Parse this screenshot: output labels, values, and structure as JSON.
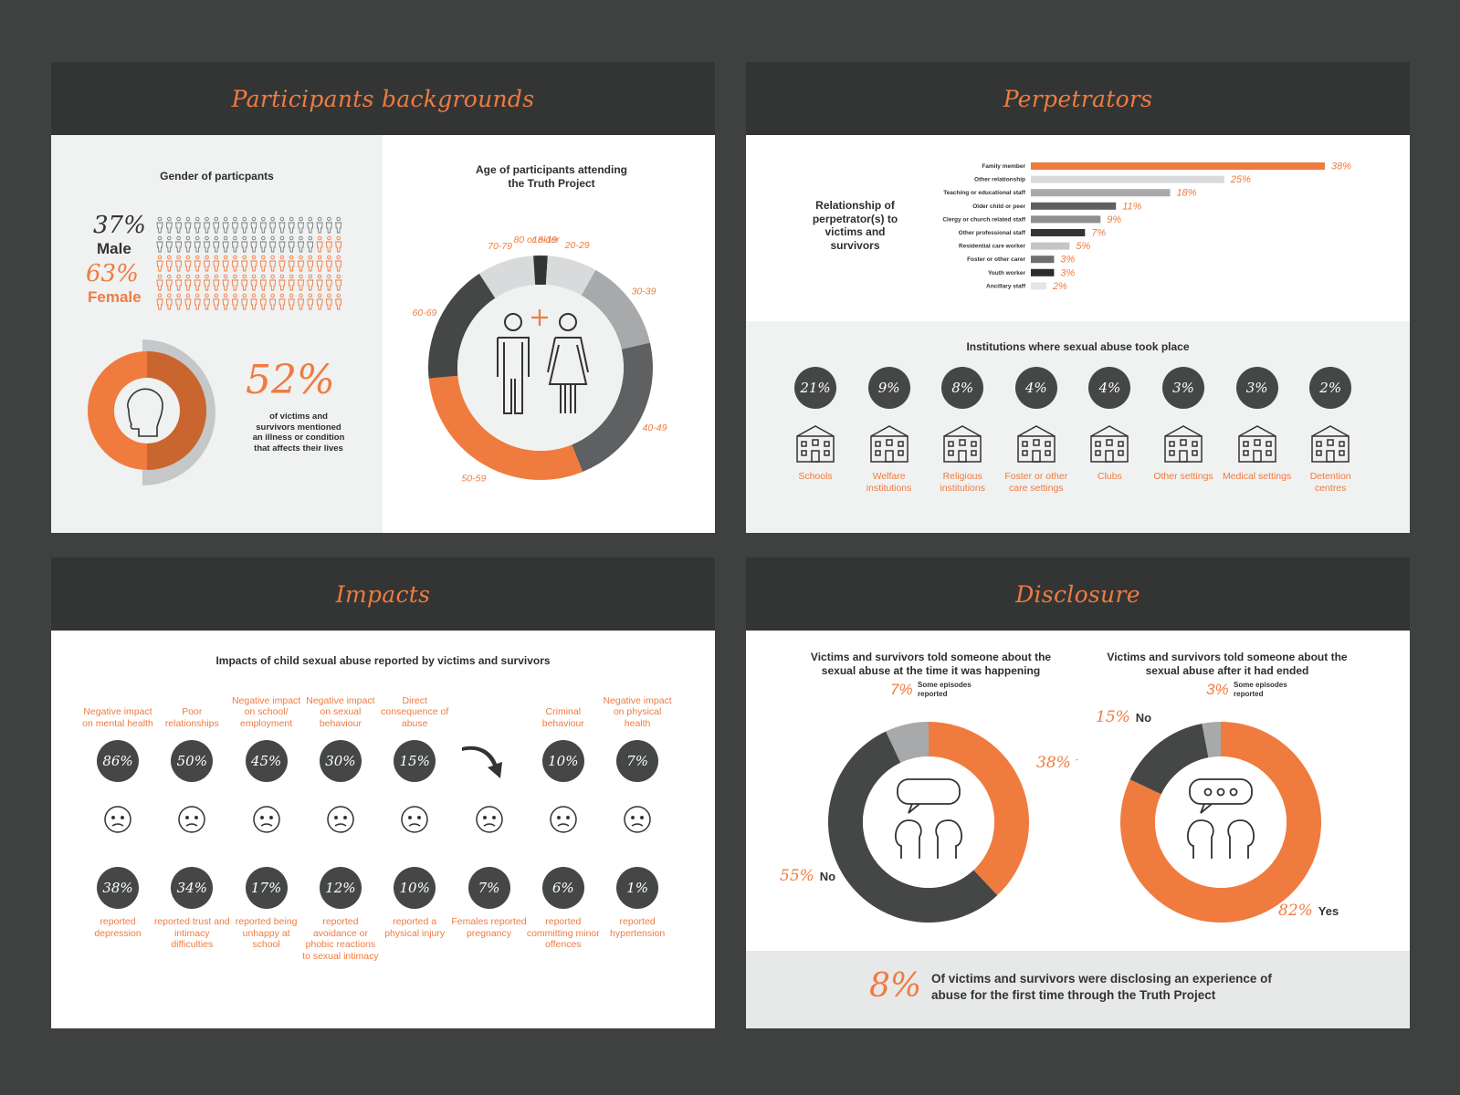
{
  "colors": {
    "orange": "#f07b3f",
    "dark": "#333535",
    "mid": "#5f6061",
    "light": "#a8a9aa",
    "pale": "#d9dadb",
    "bg": "#3f4140"
  },
  "panels": {
    "backgrounds": {
      "title": "Participants backgrounds",
      "gender_title": "Gender of particpants",
      "male_pct": "37%",
      "male_label": "Male",
      "female_pct": "63%",
      "female_label": "Female",
      "illness_pct": "52%",
      "illness_text": "of victims and survivors mentioned an illness or condition that affects their lives",
      "age_title": "Age of participants attending the Truth Project"
    },
    "perpetrators": {
      "title": "Perpetrators",
      "relationship_title": "Relationship of perpetrator(s) to victims and survivors",
      "institutions_title": "Institutions where sexual abuse took place"
    },
    "impacts": {
      "title": "Impacts",
      "subtitle": "Impacts of child sexual abuse reported by victims and survivors"
    },
    "disclosure": {
      "title": "Disclosure",
      "left_title": "Victims and survivors told someone about the sexual abuse at the time it was happening",
      "right_title": "Victims and survivors told someone about the sexual abuse after it had ended",
      "some_episodes": "Some episodes reported",
      "yes": "Yes",
      "no": "No",
      "footer_pct": "8%",
      "footer_text": "Of victims and survivors were disclosing an experience of abuse for the first time through the Truth Project"
    }
  },
  "chart_data": [
    {
      "type": "pie",
      "title": "Gender of particpants",
      "categories": [
        "Male",
        "Female"
      ],
      "values": [
        37,
        63
      ]
    },
    {
      "type": "pie",
      "title": "Age of participants attending the Truth Project",
      "categories": [
        "18-19",
        "20-29",
        "30-39",
        "40-49",
        "50-59",
        "60-69",
        "70-79",
        "80 or older"
      ],
      "values": [
        1,
        7,
        13,
        22,
        29,
        17,
        8,
        1
      ],
      "colors": [
        "#333535",
        "#d9dadb",
        "#a8a9aa",
        "#5f6061",
        "#f07b3f",
        "#454746",
        "#d9dadb",
        "#333535"
      ]
    },
    {
      "type": "bar",
      "title": "Relationship of perpetrator(s) to victims and survivors",
      "categories": [
        "Family member",
        "Other relationship",
        "Teaching or educational staff",
        "Older child or peer",
        "Clergy or church related staff",
        "Other professional staff",
        "Residential care worker",
        "Foster or other carer",
        "Youth worker",
        "Ancillary staff"
      ],
      "values": [
        38,
        25,
        18,
        11,
        9,
        7,
        5,
        3,
        3,
        2
      ],
      "labels": [
        "38%",
        "25%",
        "18%",
        "11%",
        "9%",
        "7%",
        "5%",
        "3%",
        "3%",
        "2%"
      ],
      "colors": [
        "#f07b3f",
        "#d9dadb",
        "#a8a9aa",
        "#5f6061",
        "#8e8f90",
        "#333535",
        "#c4c5c6",
        "#6e6f70",
        "#2b2c2c",
        "#e4e5e5"
      ]
    },
    {
      "type": "bar",
      "title": "Institutions where sexual abuse took place",
      "categories": [
        "Schools",
        "Welfare institutions",
        "Religious institutions",
        "Foster or other care settings",
        "Clubs",
        "Other settings",
        "Medical settings",
        "Detention centres"
      ],
      "values": [
        21,
        9,
        8,
        4,
        4,
        3,
        3,
        2
      ],
      "labels": [
        "21%",
        "9%",
        "8%",
        "4%",
        "4%",
        "3%",
        "3%",
        "2%"
      ]
    },
    {
      "type": "table",
      "title": "Impacts of child sexual abuse reported by victims and survivors",
      "columns": [
        {
          "category": "Negative impact on mental health",
          "top": "86%",
          "bottom": "38%",
          "bottom_label": "reported depression"
        },
        {
          "category": "Poor relationships",
          "top": "50%",
          "bottom": "34%",
          "bottom_label": "reported trust and intimacy difficulties"
        },
        {
          "category": "Negative impact on school/ employment",
          "top": "45%",
          "bottom": "17%",
          "bottom_label": "reported being unhappy at school"
        },
        {
          "category": "Negative impact on sexual behaviour",
          "top": "30%",
          "bottom": "12%",
          "bottom_label": "reported avoidance or phobic reactions to sexual intimacy"
        },
        {
          "category": "Direct consequence of abuse",
          "top": "15%",
          "bottom": "10%",
          "bottom_label": "reported a physical injury"
        },
        {
          "category": "",
          "top": "",
          "bottom": "7%",
          "bottom_label": "Females reported pregnancy"
        },
        {
          "category": "Criminal behaviour",
          "top": "10%",
          "bottom": "6%",
          "bottom_label": "reported committing minor offences"
        },
        {
          "category": "Negative impact on physical health",
          "top": "7%",
          "bottom": "1%",
          "bottom_label": "reported hypertension"
        }
      ]
    },
    {
      "type": "pie",
      "title": "Victims and survivors told someone about the sexual abuse at the time it was happening",
      "categories": [
        "Yes",
        "No",
        "Some episodes reported"
      ],
      "values": [
        38,
        55,
        7
      ],
      "labels": [
        "38%",
        "55%",
        "7%"
      ]
    },
    {
      "type": "pie",
      "title": "Victims and survivors told someone about the sexual abuse after it had ended",
      "categories": [
        "Yes",
        "No",
        "Some episodes reported"
      ],
      "values": [
        82,
        15,
        3
      ],
      "labels": [
        "82%",
        "15%",
        "3%"
      ]
    }
  ]
}
